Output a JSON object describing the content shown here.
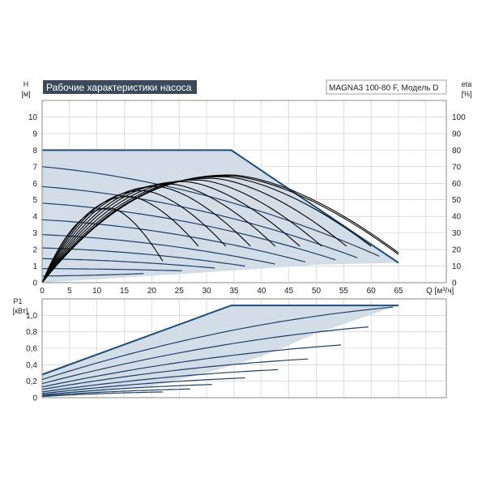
{
  "colors": {
    "background": "#ffffff",
    "plot_background": "#ffffff",
    "grid": "#c8c8c8",
    "frame": "#8a8a8a",
    "area_fill": "#d3dde8",
    "boundary": "#1f4e79",
    "curve": "#1e3f66",
    "efficiency": "#000000",
    "title_bg": "#3a4a5a",
    "title_text": "#ffffff"
  },
  "header": {
    "title": "Рабочие характеристики насоса",
    "model": "MAGNA3 100-80 F, Модель D"
  },
  "chart_data": [
    {
      "type": "line",
      "name": "head",
      "title": "Рабочие характеристики насоса",
      "ylabel_lines": [
        "H",
        "[м]"
      ],
      "y2label_lines": [
        "eta",
        "[%]"
      ],
      "xlabel": "Q [м³/ч]",
      "xlim": [
        0,
        65
      ],
      "ylim": [
        0,
        11
      ],
      "xticks": [
        0,
        5,
        10,
        15,
        20,
        25,
        30,
        35,
        40,
        45,
        50,
        55,
        60,
        65
      ],
      "yticks": [
        0,
        1,
        2,
        3,
        4,
        5,
        6,
        7,
        8,
        9,
        10
      ],
      "y2lim": [
        0,
        110
      ],
      "y2ticks": [
        0,
        10,
        20,
        30,
        40,
        50,
        60,
        70,
        80,
        90,
        100
      ],
      "grid": true,
      "operating_area": [
        [
          0,
          8
        ],
        [
          34.5,
          8
        ],
        [
          65,
          1.2
        ],
        [
          50,
          1.08
        ],
        [
          40,
          0.85
        ],
        [
          30,
          0.62
        ],
        [
          22,
          0.45
        ],
        [
          0,
          0
        ]
      ],
      "max_curve": [
        [
          0,
          8
        ],
        [
          34.5,
          8
        ],
        [
          65,
          1.2
        ]
      ],
      "constant_curves": [
        {
          "h0": 7.0,
          "qend": 61.5,
          "hend": 1.6
        },
        {
          "h0": 5.8,
          "qend": 57.5,
          "hend": 1.5
        },
        {
          "h0": 4.8,
          "qend": 53.5,
          "hend": 1.38
        },
        {
          "h0": 3.8,
          "qend": 48.0,
          "hend": 1.25
        },
        {
          "h0": 2.9,
          "qend": 42.5,
          "hend": 1.12
        },
        {
          "h0": 2.1,
          "qend": 37.0,
          "hend": 1.0
        },
        {
          "h0": 1.45,
          "qend": 31.5,
          "hend": 0.88
        },
        {
          "h0": 0.85,
          "qend": 25.5,
          "hend": 0.72
        },
        {
          "h0": 0.4,
          "qend": 18.5,
          "hend": 0.55
        }
      ],
      "efficiency_curves": [
        {
          "qmax": 34.5,
          "etamax": 65,
          "qend": 65,
          "etaend": 18
        },
        {
          "qmax": 34.0,
          "etamax": 64.5,
          "qend": 65,
          "etaend": 17
        },
        {
          "qmax": 33.0,
          "etamax": 64,
          "qend": 60,
          "etaend": 22
        },
        {
          "qmax": 31.0,
          "etamax": 63,
          "qend": 55.5,
          "etaend": 22
        },
        {
          "qmax": 28.5,
          "etamax": 62,
          "qend": 51,
          "etaend": 22
        },
        {
          "qmax": 26.0,
          "etamax": 61,
          "qend": 47,
          "etaend": 22
        },
        {
          "qmax": 23.5,
          "etamax": 59.5,
          "qend": 42.5,
          "etaend": 22
        },
        {
          "qmax": 21.0,
          "etamax": 58,
          "qend": 38,
          "etaend": 22
        },
        {
          "qmax": 18.5,
          "etamax": 55.5,
          "qend": 33.5,
          "etaend": 22
        },
        {
          "qmax": 16.0,
          "etamax": 52,
          "qend": 28.5,
          "etaend": 22
        },
        {
          "qmax": 12.5,
          "etamax": 45,
          "qend": 22,
          "etaend": 13
        }
      ]
    },
    {
      "type": "line",
      "name": "power",
      "ylabel_lines": [
        "P1",
        "[кВт]"
      ],
      "xlim": [
        0,
        65
      ],
      "ylim": [
        0,
        1.2
      ],
      "yticks": [
        0,
        0.2,
        0.4,
        0.6,
        0.8,
        1.0
      ],
      "ytick_labels": [
        "0",
        "0,2",
        "0,4",
        "0,6",
        "0,8",
        "1,0"
      ],
      "xticks": [
        0,
        5,
        10,
        15,
        20,
        25,
        30,
        35,
        40,
        45,
        50,
        55,
        60,
        65
      ],
      "grid": true,
      "operating_area": [
        [
          0,
          0.28
        ],
        [
          34.5,
          1.12
        ],
        [
          65,
          1.12
        ],
        [
          64,
          1.1
        ],
        [
          50,
          0.78
        ],
        [
          40,
          0.5
        ],
        [
          30,
          0.3
        ],
        [
          20,
          0.14
        ],
        [
          10,
          0.07
        ],
        [
          0,
          0.03
        ]
      ],
      "max_curve": [
        [
          0,
          0.28
        ],
        [
          34.5,
          1.12
        ],
        [
          65,
          1.12
        ]
      ],
      "constant_curves": [
        {
          "p0": 0.22,
          "qend": 64.0,
          "pend": 1.1,
          "bend": 0.55
        },
        {
          "p0": 0.17,
          "qend": 59.5,
          "pend": 0.86,
          "bend": 0.5
        },
        {
          "p0": 0.13,
          "qend": 54.5,
          "pend": 0.64,
          "bend": 0.5
        },
        {
          "p0": 0.1,
          "qend": 48.5,
          "pend": 0.47,
          "bend": 0.5
        },
        {
          "p0": 0.07,
          "qend": 43.0,
          "pend": 0.34,
          "bend": 0.5
        },
        {
          "p0": 0.05,
          "qend": 37.0,
          "pend": 0.24,
          "bend": 0.5
        },
        {
          "p0": 0.035,
          "qend": 31.0,
          "pend": 0.16,
          "bend": 0.5
        },
        {
          "p0": 0.025,
          "qend": 27.0,
          "pend": 0.105,
          "bend": 0.5
        },
        {
          "p0": 0.015,
          "qend": 22.0,
          "pend": 0.07,
          "bend": 0.5
        }
      ]
    }
  ]
}
